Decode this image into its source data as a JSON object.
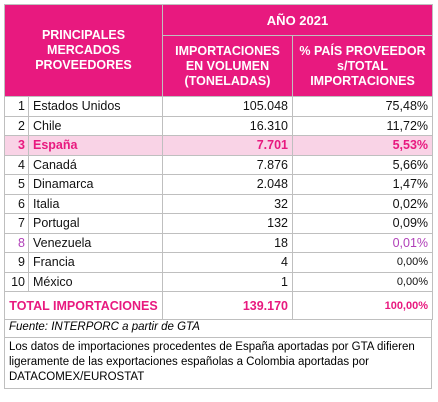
{
  "header": {
    "left": "PRINCIPALES MERCADOS PROVEEDORES",
    "year": "AÑO 2021",
    "volume": "IMPORTACIONES EN VOLUMEN (TONELADAS)",
    "percent": "% PAÍS PROVEEDOR s/TOTAL IMPORTACIONES"
  },
  "rows": [
    [
      "1",
      "Estados Unidos",
      "105.048",
      "75,48%"
    ],
    [
      "2",
      "Chile",
      "16.310",
      "11,72%"
    ],
    [
      "3",
      "España",
      "7.701",
      "5,53%"
    ],
    [
      "4",
      "Canadá",
      "7.876",
      "5,66%"
    ],
    [
      "5",
      "Dinamarca",
      "2.048",
      "1,47%"
    ],
    [
      "6",
      "Italia",
      "32",
      "0,02%"
    ],
    [
      "7",
      "Portugal",
      "132",
      "0,09%"
    ],
    [
      "8",
      "Venezuela",
      "18",
      "0,01%"
    ],
    [
      "9",
      "Francia",
      "4",
      "0,00%"
    ],
    [
      "10",
      "México",
      "1",
      "0,00%"
    ]
  ],
  "total": {
    "label": "TOTAL IMPORTACIONES",
    "volume": "139.170",
    "percent": "100,00%"
  },
  "source": "Fuente: INTERPORC a partir de GTA",
  "note": "Los datos de importaciones procedentes de España aportadas por GTA difieren ligeramente de las exportaciones españolas a Colombia aportadas por DATACOMEX/EUROSTAT"
}
